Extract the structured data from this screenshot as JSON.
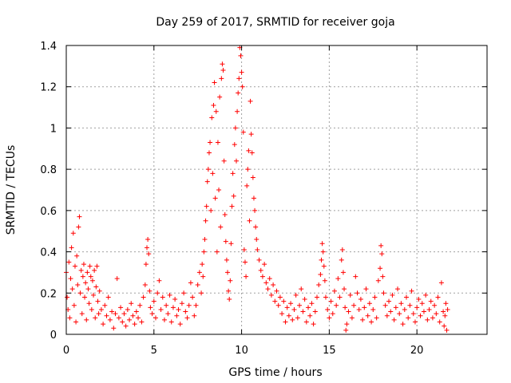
{
  "chart_data": {
    "type": "scatter",
    "title": "Day 259 of 2017, SRMTID for receiver goja",
    "xlabel": "GPS time / hours",
    "ylabel": "SRMTID / TECUs",
    "xlim": [
      0,
      24
    ],
    "ylim": [
      0,
      1.4
    ],
    "xticks": [
      0,
      5,
      10,
      15,
      20
    ],
    "xtick_labels": [
      "0",
      "5",
      "10",
      "15",
      "20"
    ],
    "yticks": [
      0,
      0.2,
      0.4,
      0.6,
      0.8,
      1,
      1.2,
      1.4
    ],
    "ytick_labels": [
      "0",
      "0.2",
      "0.4",
      "0.6",
      "0.8",
      "1",
      "1.2",
      "1.4"
    ],
    "grid": true,
    "marker": "+",
    "color": "#ff0000",
    "series": [
      {
        "name": "SRMTID",
        "points": [
          [
            0.0,
            0.3
          ],
          [
            0.05,
            0.18
          ],
          [
            0.1,
            0.12
          ],
          [
            0.15,
            0.35
          ],
          [
            0.2,
            0.08
          ],
          [
            0.25,
            0.27
          ],
          [
            0.3,
            0.42
          ],
          [
            0.35,
            0.22
          ],
          [
            0.4,
            0.49
          ],
          [
            0.45,
            0.14
          ],
          [
            0.5,
            0.33
          ],
          [
            0.55,
            0.06
          ],
          [
            0.6,
            0.38
          ],
          [
            0.65,
            0.24
          ],
          [
            0.7,
            0.52
          ],
          [
            0.75,
            0.57
          ],
          [
            0.8,
            0.2
          ],
          [
            0.85,
            0.31
          ],
          [
            0.9,
            0.1
          ],
          [
            0.95,
            0.28
          ],
          [
            1.0,
            0.34
          ],
          [
            1.05,
            0.18
          ],
          [
            1.1,
            0.25
          ],
          [
            1.15,
            0.07
          ],
          [
            1.2,
            0.3
          ],
          [
            1.25,
            0.22
          ],
          [
            1.3,
            0.15
          ],
          [
            1.35,
            0.33
          ],
          [
            1.4,
            0.28
          ],
          [
            1.45,
            0.12
          ],
          [
            1.5,
            0.26
          ],
          [
            1.55,
            0.19
          ],
          [
            1.6,
            0.31
          ],
          [
            1.65,
            0.08
          ],
          [
            1.7,
            0.23
          ],
          [
            1.75,
            0.33
          ],
          [
            1.8,
            0.16
          ],
          [
            1.85,
            0.1
          ],
          [
            1.9,
            0.21
          ],
          [
            2.0,
            0.12
          ],
          [
            2.1,
            0.05
          ],
          [
            2.2,
            0.14
          ],
          [
            2.3,
            0.09
          ],
          [
            2.4,
            0.18
          ],
          [
            2.5,
            0.07
          ],
          [
            2.6,
            0.11
          ],
          [
            2.7,
            0.03
          ],
          [
            2.8,
            0.1
          ],
          [
            2.9,
            0.27
          ],
          [
            3.0,
            0.08
          ],
          [
            3.1,
            0.13
          ],
          [
            3.2,
            0.06
          ],
          [
            3.3,
            0.1
          ],
          [
            3.4,
            0.04
          ],
          [
            3.5,
            0.12
          ],
          [
            3.6,
            0.07
          ],
          [
            3.7,
            0.15
          ],
          [
            3.8,
            0.09
          ],
          [
            3.9,
            0.05
          ],
          [
            4.0,
            0.11
          ],
          [
            4.1,
            0.08
          ],
          [
            4.2,
            0.14
          ],
          [
            4.3,
            0.06
          ],
          [
            4.4,
            0.18
          ],
          [
            4.5,
            0.24
          ],
          [
            4.55,
            0.34
          ],
          [
            4.6,
            0.42
          ],
          [
            4.65,
            0.46
          ],
          [
            4.7,
            0.39
          ],
          [
            4.75,
            0.21
          ],
          [
            4.8,
            0.13
          ],
          [
            4.9,
            0.1
          ],
          [
            5.0,
            0.16
          ],
          [
            5.1,
            0.08
          ],
          [
            5.2,
            0.2
          ],
          [
            5.3,
            0.26
          ],
          [
            5.4,
            0.12
          ],
          [
            5.5,
            0.18
          ],
          [
            5.6,
            0.07
          ],
          [
            5.7,
            0.14
          ],
          [
            5.8,
            0.1
          ],
          [
            5.9,
            0.19
          ],
          [
            6.0,
            0.06
          ],
          [
            6.1,
            0.13
          ],
          [
            6.2,
            0.17
          ],
          [
            6.3,
            0.09
          ],
          [
            6.4,
            0.12
          ],
          [
            6.5,
            0.05
          ],
          [
            6.6,
            0.15
          ],
          [
            6.7,
            0.2
          ],
          [
            6.8,
            0.11
          ],
          [
            6.9,
            0.08
          ],
          [
            7.0,
            0.14
          ],
          [
            7.1,
            0.25
          ],
          [
            7.2,
            0.18
          ],
          [
            7.3,
            0.09
          ],
          [
            7.4,
            0.14
          ],
          [
            7.5,
            0.24
          ],
          [
            7.6,
            0.3
          ],
          [
            7.7,
            0.2
          ],
          [
            7.75,
            0.34
          ],
          [
            7.8,
            0.28
          ],
          [
            7.85,
            0.4
          ],
          [
            7.9,
            0.46
          ],
          [
            7.95,
            0.55
          ],
          [
            8.0,
            0.62
          ],
          [
            8.05,
            0.74
          ],
          [
            8.1,
            0.8
          ],
          [
            8.15,
            0.88
          ],
          [
            8.2,
            0.93
          ],
          [
            8.25,
            0.6
          ],
          [
            8.3,
            1.05
          ],
          [
            8.35,
            0.78
          ],
          [
            8.4,
            1.11
          ],
          [
            8.45,
            1.22
          ],
          [
            8.5,
            0.66
          ],
          [
            8.55,
            1.08
          ],
          [
            8.6,
            0.4
          ],
          [
            8.65,
            0.93
          ],
          [
            8.7,
            0.7
          ],
          [
            8.75,
            1.15
          ],
          [
            8.8,
            0.52
          ],
          [
            8.85,
            1.24
          ],
          [
            8.9,
            1.31
          ],
          [
            8.95,
            1.28
          ],
          [
            9.0,
            0.84
          ],
          [
            9.05,
            0.58
          ],
          [
            9.1,
            0.45
          ],
          [
            9.15,
            0.36
          ],
          [
            9.2,
            0.3
          ],
          [
            9.25,
            0.21
          ],
          [
            9.3,
            0.17
          ],
          [
            9.35,
            0.26
          ],
          [
            9.4,
            0.44
          ],
          [
            9.45,
            0.62
          ],
          [
            9.5,
            0.78
          ],
          [
            9.55,
            0.67
          ],
          [
            9.6,
            0.92
          ],
          [
            9.65,
            1.0
          ],
          [
            9.7,
            0.84
          ],
          [
            9.75,
            1.08
          ],
          [
            9.8,
            1.17
          ],
          [
            9.85,
            1.24
          ],
          [
            9.9,
            1.39
          ],
          [
            9.95,
            1.35
          ],
          [
            10.0,
            1.27
          ],
          [
            10.05,
            1.2
          ],
          [
            10.1,
            0.98
          ],
          [
            10.15,
            0.41
          ],
          [
            10.2,
            0.35
          ],
          [
            10.25,
            0.28
          ],
          [
            10.3,
            0.72
          ],
          [
            10.35,
            0.8
          ],
          [
            10.4,
            0.89
          ],
          [
            10.45,
            0.55
          ],
          [
            10.5,
            1.13
          ],
          [
            10.55,
            0.97
          ],
          [
            10.6,
            0.88
          ],
          [
            10.65,
            0.76
          ],
          [
            10.7,
            0.66
          ],
          [
            10.75,
            0.6
          ],
          [
            10.8,
            0.52
          ],
          [
            10.85,
            0.46
          ],
          [
            10.9,
            0.41
          ],
          [
            11.0,
            0.36
          ],
          [
            11.1,
            0.31
          ],
          [
            11.2,
            0.28
          ],
          [
            11.3,
            0.34
          ],
          [
            11.4,
            0.25
          ],
          [
            11.5,
            0.22
          ],
          [
            11.6,
            0.27
          ],
          [
            11.7,
            0.19
          ],
          [
            11.8,
            0.24
          ],
          [
            11.9,
            0.16
          ],
          [
            12.0,
            0.21
          ],
          [
            12.1,
            0.14
          ],
          [
            12.2,
            0.18
          ],
          [
            12.3,
            0.1
          ],
          [
            12.4,
            0.16
          ],
          [
            12.5,
            0.06
          ],
          [
            12.6,
            0.13
          ],
          [
            12.7,
            0.09
          ],
          [
            12.8,
            0.15
          ],
          [
            12.9,
            0.07
          ],
          [
            13.0,
            0.12
          ],
          [
            13.1,
            0.19
          ],
          [
            13.2,
            0.08
          ],
          [
            13.3,
            0.14
          ],
          [
            13.4,
            0.22
          ],
          [
            13.5,
            0.11
          ],
          [
            13.6,
            0.17
          ],
          [
            13.7,
            0.06
          ],
          [
            13.8,
            0.13
          ],
          [
            13.9,
            0.09
          ],
          [
            14.0,
            0.15
          ],
          [
            14.1,
            0.05
          ],
          [
            14.2,
            0.11
          ],
          [
            14.3,
            0.18
          ],
          [
            14.4,
            0.24
          ],
          [
            14.5,
            0.29
          ],
          [
            14.55,
            0.36
          ],
          [
            14.6,
            0.44
          ],
          [
            14.65,
            0.4
          ],
          [
            14.7,
            0.33
          ],
          [
            14.75,
            0.26
          ],
          [
            14.8,
            0.18
          ],
          [
            14.9,
            0.12
          ],
          [
            15.0,
            0.08
          ],
          [
            15.1,
            0.16
          ],
          [
            15.2,
            0.1
          ],
          [
            15.3,
            0.21
          ],
          [
            15.4,
            0.14
          ],
          [
            15.5,
            0.27
          ],
          [
            15.6,
            0.18
          ],
          [
            15.7,
            0.36
          ],
          [
            15.75,
            0.41
          ],
          [
            15.8,
            0.3
          ],
          [
            15.85,
            0.22
          ],
          [
            15.9,
            0.13
          ],
          [
            15.95,
            0.02
          ],
          [
            16.0,
            0.05
          ],
          [
            16.1,
            0.11
          ],
          [
            16.2,
            0.19
          ],
          [
            16.3,
            0.08
          ],
          [
            16.4,
            0.14
          ],
          [
            16.5,
            0.28
          ],
          [
            16.6,
            0.2
          ],
          [
            16.7,
            0.12
          ],
          [
            16.8,
            0.17
          ],
          [
            16.9,
            0.07
          ],
          [
            17.0,
            0.13
          ],
          [
            17.1,
            0.22
          ],
          [
            17.2,
            0.09
          ],
          [
            17.3,
            0.15
          ],
          [
            17.4,
            0.06
          ],
          [
            17.5,
            0.12
          ],
          [
            17.6,
            0.18
          ],
          [
            17.7,
            0.08
          ],
          [
            17.8,
            0.26
          ],
          [
            17.9,
            0.32
          ],
          [
            17.95,
            0.43
          ],
          [
            18.0,
            0.39
          ],
          [
            18.05,
            0.28
          ],
          [
            18.1,
            0.2
          ],
          [
            18.2,
            0.14
          ],
          [
            18.3,
            0.09
          ],
          [
            18.4,
            0.16
          ],
          [
            18.5,
            0.11
          ],
          [
            18.6,
            0.19
          ],
          [
            18.7,
            0.07
          ],
          [
            18.8,
            0.13
          ],
          [
            18.9,
            0.22
          ],
          [
            19.0,
            0.1
          ],
          [
            19.1,
            0.15
          ],
          [
            19.2,
            0.05
          ],
          [
            19.3,
            0.12
          ],
          [
            19.4,
            0.18
          ],
          [
            19.5,
            0.08
          ],
          [
            19.6,
            0.14
          ],
          [
            19.7,
            0.21
          ],
          [
            19.8,
            0.1
          ],
          [
            19.9,
            0.06
          ],
          [
            20.0,
            0.13
          ],
          [
            20.1,
            0.17
          ],
          [
            20.2,
            0.09
          ],
          [
            20.3,
            0.15
          ],
          [
            20.4,
            0.11
          ],
          [
            20.5,
            0.19
          ],
          [
            20.6,
            0.07
          ],
          [
            20.7,
            0.12
          ],
          [
            20.8,
            0.16
          ],
          [
            20.9,
            0.08
          ],
          [
            21.0,
            0.14
          ],
          [
            21.1,
            0.1
          ],
          [
            21.2,
            0.18
          ],
          [
            21.3,
            0.06
          ],
          [
            21.4,
            0.25
          ],
          [
            21.5,
            0.11
          ],
          [
            21.55,
            0.04
          ],
          [
            21.6,
            0.09
          ],
          [
            21.65,
            0.15
          ],
          [
            21.7,
            0.02
          ],
          [
            21.75,
            0.12
          ]
        ]
      }
    ]
  }
}
